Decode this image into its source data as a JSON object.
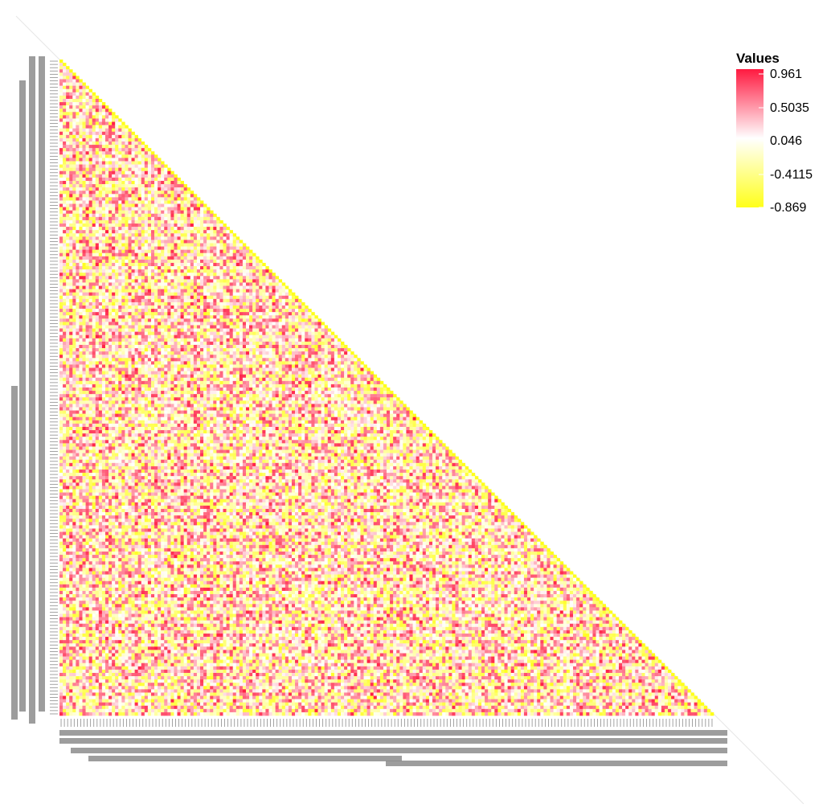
{
  "chart_data": {
    "type": "heatmap",
    "shape": "lower-triangular",
    "n": 200,
    "values_note": "Individual cell values and variable names are not legible at this resolution; cells span -0.869 to 0.961.",
    "value_range": [
      -0.869,
      0.961
    ],
    "legend": {
      "title": "Values",
      "placement": "top-right",
      "ticks": [
        "0.961",
        "0.5035",
        "0.046",
        "-0.4115",
        "-0.869"
      ],
      "tick_values": [
        0.961,
        0.5035,
        0.046,
        -0.4115,
        -0.869
      ]
    },
    "colors": {
      "high": "#ff1a40",
      "mid": "#ffffff",
      "low": "#ffff1a",
      "axis_text": "#8c8c8c"
    },
    "row_labels_legible": false,
    "column_labels_legible": false
  }
}
